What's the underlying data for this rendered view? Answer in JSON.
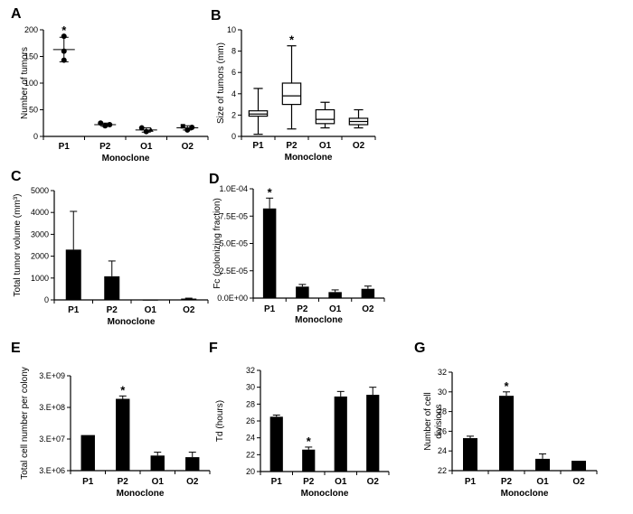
{
  "chart_data": [
    {
      "id": "A",
      "letter": "A",
      "type": "scatter",
      "ylabel": "Number of tumors",
      "xlabel": "Monoclone",
      "ylim": [
        0,
        200
      ],
      "yticks": [
        "0",
        "50",
        "100",
        "150",
        "200"
      ],
      "ytick_values": [
        0,
        50,
        100,
        150,
        200
      ],
      "categories": [
        "P1",
        "P2",
        "O1",
        "O2"
      ],
      "points": [
        [
          188,
          160,
          143
        ],
        [
          25,
          22,
          20
        ],
        [
          16,
          12,
          9
        ],
        [
          19,
          17,
          12
        ]
      ],
      "means": [
        163,
        22,
        12,
        16
      ],
      "sd": [
        23,
        3,
        4,
        4
      ],
      "star_label": "*",
      "significant": [
        true,
        false,
        false,
        false
      ]
    },
    {
      "id": "B",
      "letter": "B",
      "type": "box",
      "ylabel": "Size of tumors (mm)",
      "xlabel": "Monoclone",
      "ylim": [
        0,
        10
      ],
      "yticks": [
        "0",
        "2",
        "4",
        "6",
        "8",
        "10"
      ],
      "ytick_values": [
        0,
        2,
        4,
        6,
        8,
        10
      ],
      "categories": [
        "P1",
        "P2",
        "O1",
        "O2"
      ],
      "boxes": [
        {
          "min": 0.2,
          "q1": 1.9,
          "median": 2.1,
          "q3": 2.4,
          "max": 4.5
        },
        {
          "min": 0.7,
          "q1": 3.0,
          "median": 3.8,
          "q3": 5.0,
          "max": 8.5
        },
        {
          "min": 0.8,
          "q1": 1.2,
          "median": 1.6,
          "q3": 2.5,
          "max": 3.2
        },
        {
          "min": 0.8,
          "q1": 1.1,
          "median": 1.4,
          "q3": 1.7,
          "max": 2.5
        }
      ],
      "star_label": "*",
      "significant": [
        false,
        true,
        false,
        false
      ]
    },
    {
      "id": "C",
      "letter": "C",
      "type": "bar",
      "ylabel": "Total tumor volume (mm³)",
      "xlabel": "Monoclone",
      "ylim": [
        0,
        5000
      ],
      "yticks": [
        "0",
        "1000",
        "2000",
        "3000",
        "4000",
        "5000"
      ],
      "ytick_values": [
        0,
        1000,
        2000,
        3000,
        4000,
        5000
      ],
      "categories": [
        "P1",
        "P2",
        "O1",
        "O2"
      ],
      "values": [
        2300,
        1080,
        10,
        60
      ],
      "errors": [
        1750,
        700,
        0,
        20
      ],
      "star_label": "*",
      "significant": [
        false,
        false,
        false,
        false
      ]
    },
    {
      "id": "D",
      "letter": "D",
      "type": "bar",
      "ylabel": "Fc (colonizing fraction)",
      "xlabel": "Monoclone",
      "ylim": [
        0,
        0.0001
      ],
      "yticks": [
        "0.0E+00",
        "2.5E-05",
        "5.0E-05",
        "7.5E-05",
        "1.0E-04"
      ],
      "ytick_values": [
        0,
        2.5e-05,
        5e-05,
        7.5e-05,
        0.0001
      ],
      "categories": [
        "P1",
        "P2",
        "O1",
        "O2"
      ],
      "values": [
        8.2e-05,
        1.05e-05,
        5.5e-06,
        8.5e-06
      ],
      "errors": [
        9.5e-06,
        2e-06,
        2e-06,
        2.5e-06
      ],
      "star_label": "*",
      "significant": [
        true,
        false,
        false,
        false
      ]
    },
    {
      "id": "E",
      "letter": "E",
      "type": "bar",
      "ylabel": "Total cell number per colony",
      "xlabel": "Monoclone",
      "log": true,
      "ylim": [
        3000000,
        3000000000
      ],
      "yticks": [
        "3.E+06",
        "3.E+07",
        "3.E+08",
        "3.E+09"
      ],
      "ytick_values": [
        3000000,
        30000000,
        300000000,
        3000000000
      ],
      "categories": [
        "P1",
        "P2",
        "O1",
        "O2"
      ],
      "values": [
        40000000,
        560000000,
        9000000,
        8000000
      ],
      "errors": [
        0,
        130000000,
        2500000,
        3500000
      ],
      "star_label": "*",
      "significant": [
        false,
        true,
        false,
        false
      ]
    },
    {
      "id": "F",
      "letter": "F",
      "type": "bar",
      "ylabel": "Td (hours)",
      "xlabel": "Monoclone",
      "ylim": [
        20,
        32
      ],
      "yticks": [
        "20",
        "22",
        "24",
        "26",
        "28",
        "30",
        "32"
      ],
      "ytick_values": [
        20,
        22,
        24,
        26,
        28,
        30,
        32
      ],
      "categories": [
        "P1",
        "P2",
        "O1",
        "O2"
      ],
      "values": [
        26.5,
        22.6,
        28.9,
        29.1
      ],
      "errors": [
        0.2,
        0.3,
        0.6,
        0.9
      ],
      "star_label": "*",
      "significant": [
        false,
        true,
        false,
        false
      ]
    },
    {
      "id": "G",
      "letter": "G",
      "type": "bar",
      "ylabel": "Number of cell divisions",
      "ylabel_lines": [
        "Number of cell",
        "divisions"
      ],
      "xlabel": "Monoclone",
      "ylim": [
        22,
        32
      ],
      "yticks": [
        "22",
        "24",
        "26",
        "28",
        "30",
        "32"
      ],
      "ytick_values": [
        22,
        24,
        26,
        28,
        30,
        32
      ],
      "categories": [
        "P1",
        "P2",
        "O1",
        "O2"
      ],
      "values": [
        25.3,
        29.6,
        23.2,
        23.0
      ],
      "errors": [
        0.2,
        0.4,
        0.5,
        0
      ],
      "star_label": "*",
      "significant": [
        false,
        true,
        false,
        false
      ]
    }
  ]
}
